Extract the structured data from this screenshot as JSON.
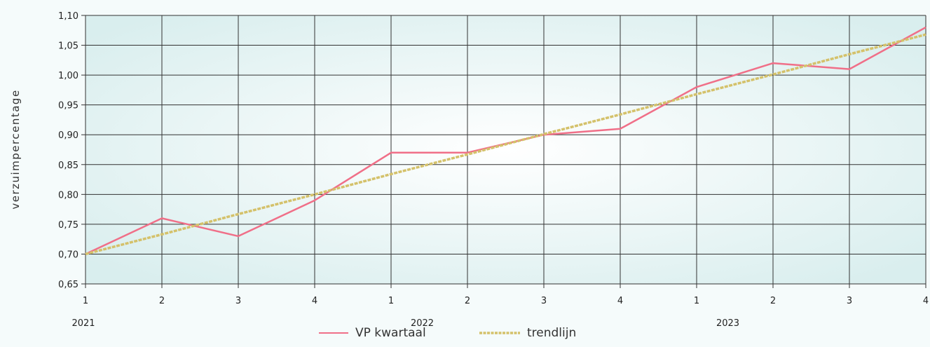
{
  "chart_data": {
    "type": "line",
    "ylabel": "verzuimpercentage",
    "ylim": [
      0.65,
      1.1
    ],
    "yticks": [
      "0,65",
      "0,70",
      "0,75",
      "0,80",
      "0,85",
      "0,90",
      "0,95",
      "1,00",
      "1,05",
      "1,10"
    ],
    "categories": [
      "1",
      "2",
      "3",
      "4",
      "1",
      "2",
      "3",
      "4",
      "1",
      "2",
      "3",
      "4"
    ],
    "years": [
      "2021",
      "2022",
      "2023"
    ],
    "grid": true,
    "series": [
      {
        "name": "VP kwartaal",
        "color": "#f06f88",
        "style": "solid",
        "values": [
          0.7,
          0.76,
          0.73,
          0.79,
          0.87,
          0.87,
          0.9,
          0.91,
          0.98,
          1.02,
          1.01,
          1.08
        ]
      },
      {
        "name": "trendlijn",
        "color": "#d4c16a",
        "style": "dashed",
        "values": [
          0.7,
          0.733,
          0.767,
          0.8,
          0.834,
          0.867,
          0.901,
          0.934,
          0.968,
          1.001,
          1.035,
          1.068
        ]
      }
    ],
    "legend": "bottom-center"
  }
}
